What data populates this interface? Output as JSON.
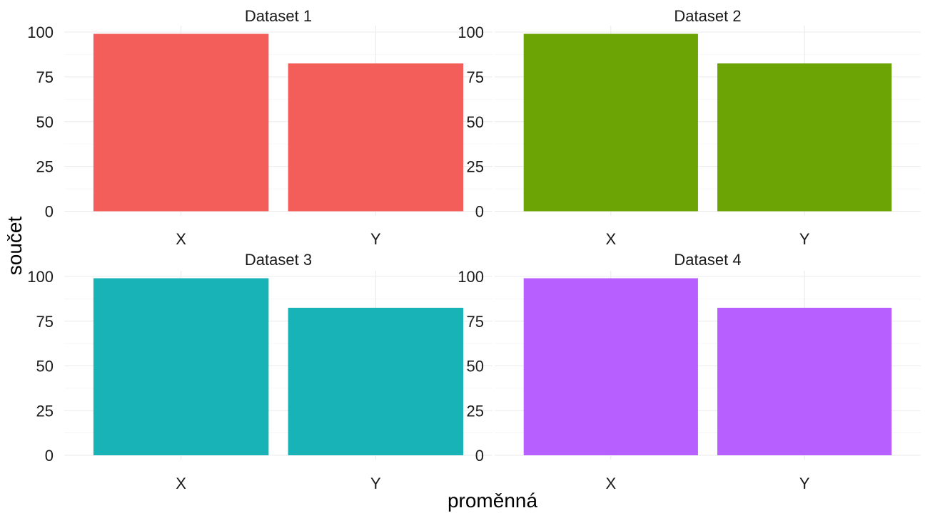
{
  "chart_data": {
    "type": "bar",
    "xlabel": "proměnná",
    "ylabel": "součet",
    "ylim": [
      0,
      100
    ],
    "yticks": [
      0,
      25,
      50,
      75,
      100
    ],
    "categories": [
      "X",
      "Y"
    ],
    "grid": true,
    "legend": "none",
    "panels": [
      {
        "title": "Dataset 1",
        "color": "#F35E5A",
        "values": [
          99,
          82.5
        ]
      },
      {
        "title": "Dataset 2",
        "color": "#6BA404",
        "values": [
          99,
          82.5
        ]
      },
      {
        "title": "Dataset 3",
        "color": "#17B3B7",
        "values": [
          99,
          82.5
        ]
      },
      {
        "title": "Dataset 4",
        "color": "#B760FF",
        "values": [
          99,
          82.5
        ]
      }
    ]
  }
}
